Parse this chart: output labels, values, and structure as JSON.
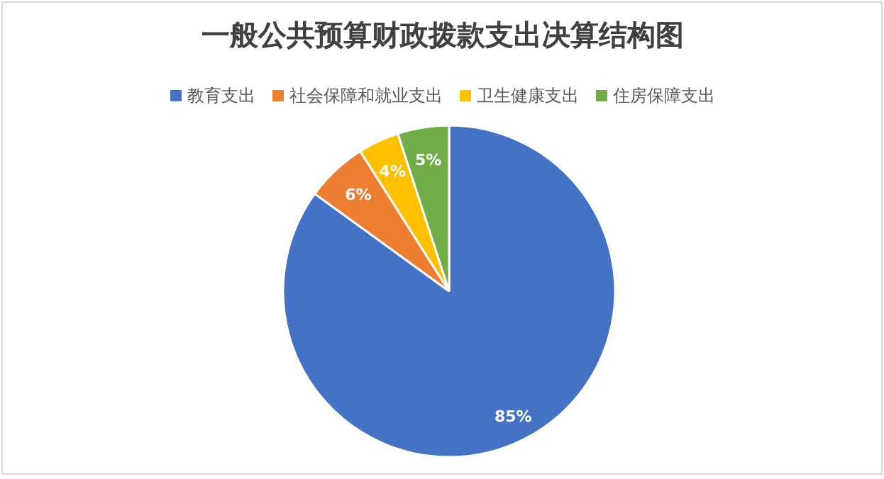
{
  "chart_data": {
    "type": "pie",
    "title": "一般公共预算财政拨款支出决算结构图",
    "categories": [
      "教育支出",
      "社会保障和就业支出",
      "卫生健康支出",
      "住房保障支出"
    ],
    "values": [
      85,
      6,
      4,
      5
    ],
    "colors": [
      "#4472c4",
      "#ed7d31",
      "#ffc000",
      "#70ad47"
    ],
    "value_labels": [
      "85%",
      "6%",
      "4%",
      "5%"
    ],
    "legend": "top"
  }
}
